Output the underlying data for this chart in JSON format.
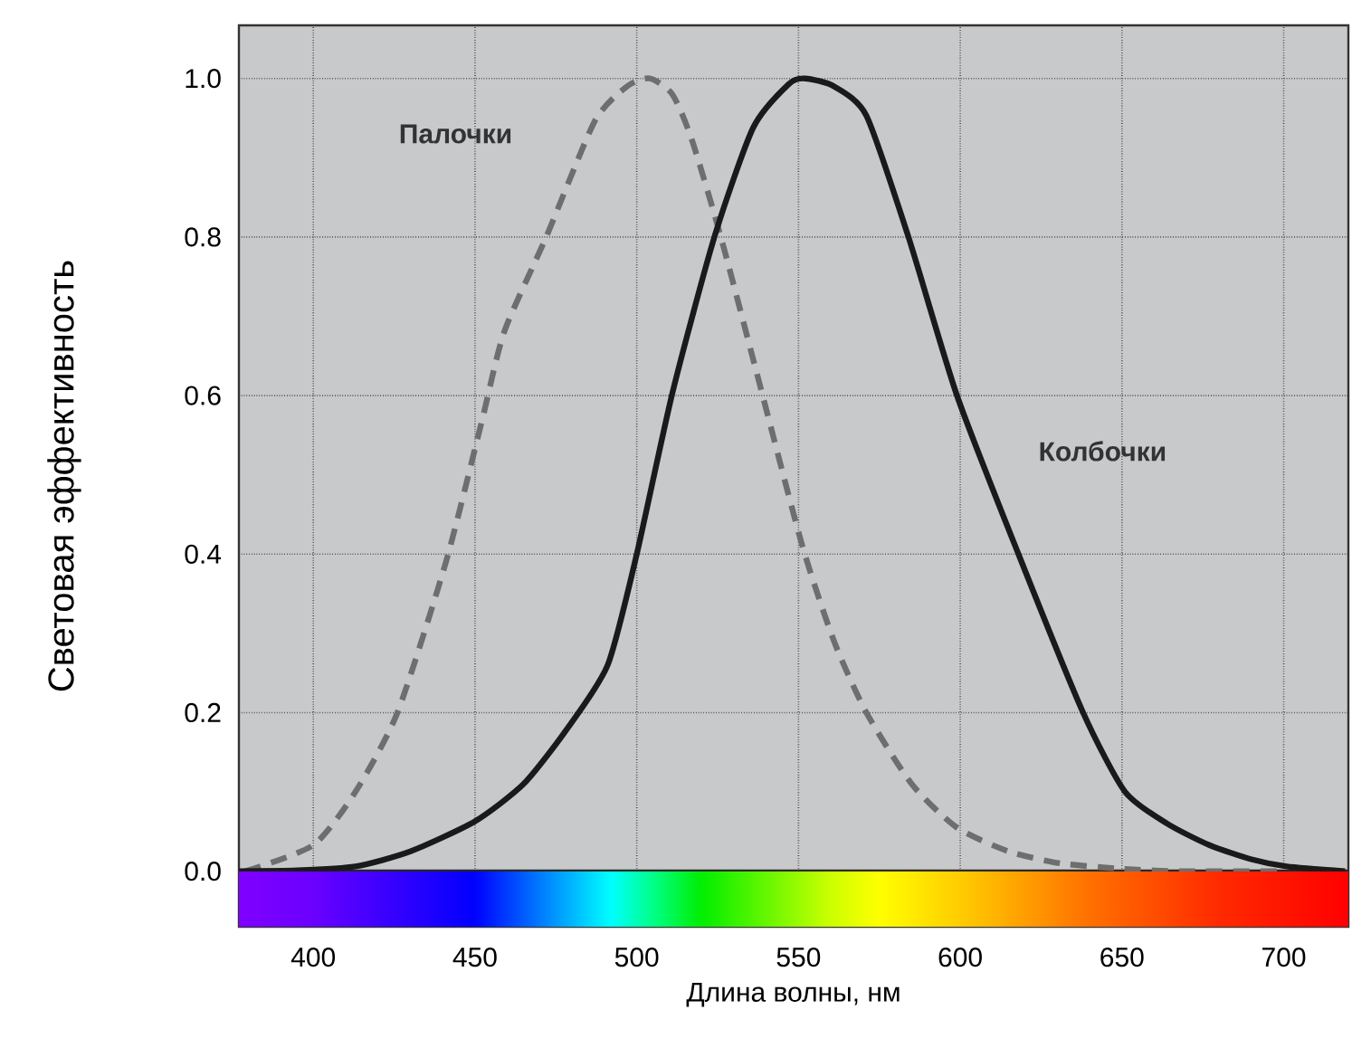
{
  "chart_data": {
    "type": "line",
    "xlabel": "Длина волны, нм",
    "ylabel": "Световая эффективность",
    "xlim": [
      377,
      720
    ],
    "ylim": [
      -0.07,
      1.067
    ],
    "xticks": [
      400,
      450,
      500,
      550,
      600,
      650,
      700
    ],
    "yticks": [
      {
        "value": 0,
        "label": "0.0"
      },
      {
        "value": 0.2,
        "label": "0.2"
      },
      {
        "value": 0.4,
        "label": "0.4"
      },
      {
        "value": 0.6,
        "label": "0.6"
      },
      {
        "value": 0.8,
        "label": "0.8"
      },
      {
        "value": 1.0,
        "label": "1.0"
      }
    ],
    "grid": true,
    "bands": [
      {
        "axis": "y",
        "from": -0.07,
        "to": 0
      }
    ],
    "series": [
      {
        "name": "Палочки",
        "color": "#6e6e6e",
        "line_style": "dashed",
        "x": [
          379,
          400,
          413,
          426,
          441,
          452,
          459,
          472,
          487,
          497,
          504,
          511,
          517,
          526,
          537,
          551,
          561,
          571,
          585,
          599,
          615,
          631,
          650,
          668,
          698
        ],
        "values": [
          0,
          0.033,
          0.1,
          0.2,
          0.39,
          0.566,
          0.68,
          0.8,
          0.946,
          0.99,
          1.0,
          0.98,
          0.923,
          0.8,
          0.63,
          0.413,
          0.29,
          0.2,
          0.11,
          0.055,
          0.025,
          0.01,
          0.003,
          0,
          0
        ]
      },
      {
        "name": "Колбочки",
        "color": "#1a1a1a",
        "line_style": "solid",
        "x": [
          377,
          395,
          413,
          430,
          450,
          465,
          478,
          491,
          500,
          511,
          524,
          536,
          547,
          552,
          561,
          571,
          584,
          599,
          618,
          638,
          651,
          664,
          677,
          690,
          701,
          719
        ],
        "values": [
          0,
          0.001,
          0.006,
          0.025,
          0.063,
          0.11,
          0.177,
          0.26,
          0.4,
          0.603,
          0.8,
          0.938,
          0.993,
          1.0,
          0.99,
          0.953,
          0.8,
          0.6,
          0.4,
          0.2,
          0.1,
          0.06,
          0.033,
          0.015,
          0.006,
          0
        ]
      }
    ]
  }
}
